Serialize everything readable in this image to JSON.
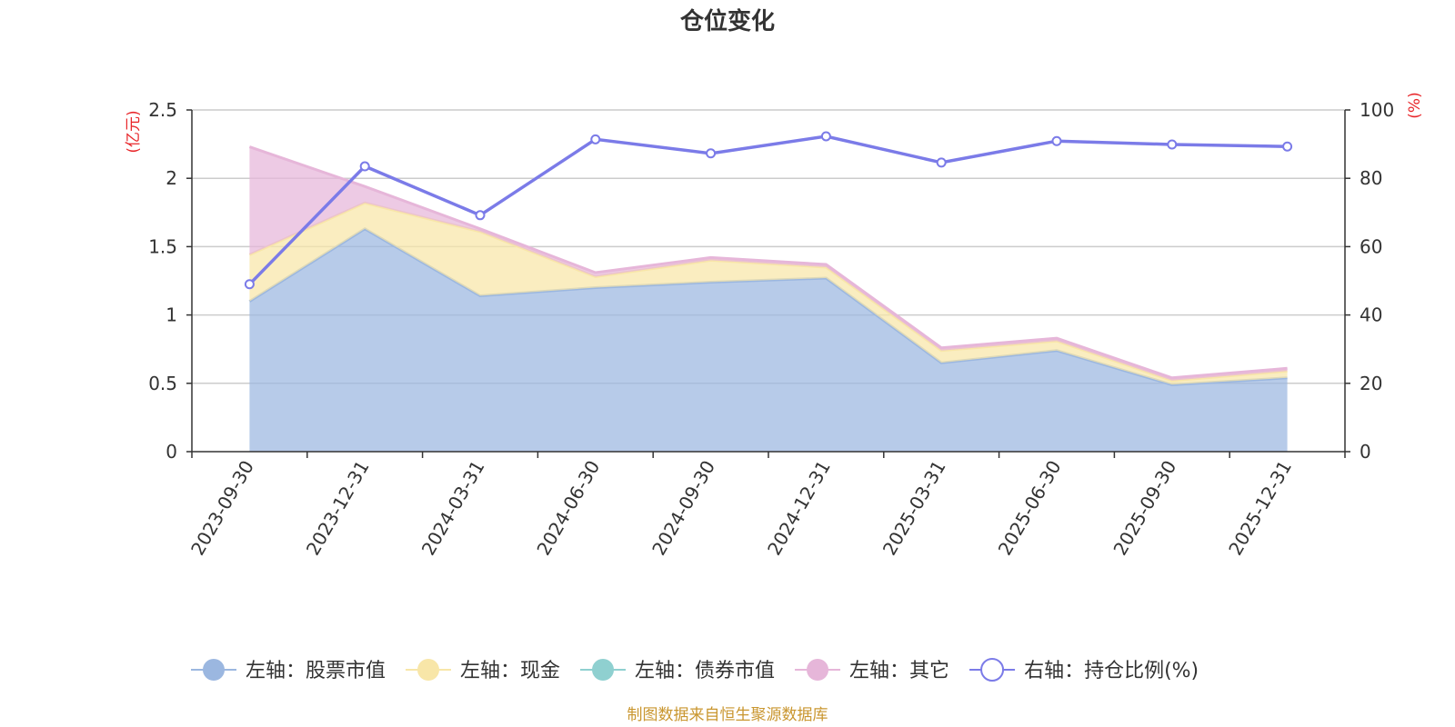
{
  "chart_data": {
    "type": "area",
    "title": "仓位变化",
    "categories": [
      "2023-09-30",
      "2023-12-31",
      "2024-03-31",
      "2024-06-30",
      "2024-09-30",
      "2024-12-31",
      "2025-03-31",
      "2025-06-30",
      "2025-09-30",
      "2025-12-31"
    ],
    "left_axis": {
      "unit": "(亿元)",
      "ylim": [
        0,
        2.5
      ],
      "ticks": [
        "0",
        "0.5",
        "1",
        "1.5",
        "2",
        "2.5"
      ]
    },
    "right_axis": {
      "unit": "(%)",
      "ylim": [
        0,
        100
      ],
      "ticks": [
        "0",
        "20",
        "40",
        "60",
        "80",
        "100"
      ]
    },
    "series": [
      {
        "name": "左轴：股票市值",
        "axis": "left",
        "stacked": true,
        "color": "#9bb7e0",
        "values": [
          1.1,
          1.63,
          1.14,
          1.2,
          1.24,
          1.27,
          0.65,
          0.74,
          0.49,
          0.54
        ]
      },
      {
        "name": "左轴：现金",
        "axis": "left",
        "stacked": true,
        "color": "#f8e6a8",
        "values": [
          0.34,
          0.19,
          0.47,
          0.08,
          0.16,
          0.08,
          0.09,
          0.07,
          0.03,
          0.05
        ]
      },
      {
        "name": "左轴：债券市值",
        "axis": "left",
        "stacked": true,
        "color": "#8fd0d0",
        "values": [
          0,
          0,
          0,
          0,
          0,
          0,
          0,
          0,
          0,
          0
        ]
      },
      {
        "name": "左轴：其它",
        "axis": "left",
        "stacked": true,
        "color": "#e6b6d9",
        "values": [
          0.79,
          0.12,
          0.02,
          0.03,
          0.02,
          0.02,
          0.02,
          0.02,
          0.02,
          0.02
        ]
      },
      {
        "name": "右轴：持仓比例(%)",
        "axis": "right",
        "type": "line",
        "color": "#7b7be8",
        "values": [
          49.0,
          83.5,
          69.2,
          91.4,
          87.3,
          92.3,
          84.6,
          90.9,
          89.9,
          89.3
        ]
      }
    ],
    "legend_position": "bottom",
    "grid": true
  },
  "footer": {
    "source": "制图数据来自恒生聚源数据库"
  }
}
